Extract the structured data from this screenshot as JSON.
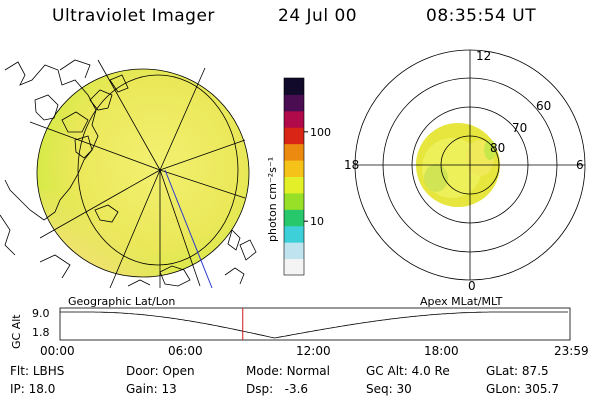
{
  "header": {
    "title": "Ultraviolet Imager",
    "date": "24 Jul 00",
    "time": "08:35:54 UT"
  },
  "colorbar": {
    "unit_label": "photon cm⁻²s⁻¹",
    "ticks": [
      {
        "value": 100,
        "label": "100"
      },
      {
        "value": 10,
        "label": "10"
      }
    ],
    "range": [
      2.5,
      400
    ],
    "scale": "log",
    "colors": [
      "#f4f4f4",
      "#bfe4ef",
      "#3ed0d8",
      "#26c86b",
      "#98e028",
      "#e3ef28",
      "#f5c21a",
      "#ec8a10",
      "#d82515",
      "#b00a4a",
      "#4a0d52",
      "#120a2a"
    ]
  },
  "polar_plot": {
    "hour_labels": [
      "12",
      "18",
      "6",
      "0"
    ],
    "lat_labels": [
      "60",
      "70",
      "80"
    ]
  },
  "map_labels": {
    "left": "Geographic Lat/Lon",
    "right": "Apex MLat/MLT"
  },
  "altitude_plot": {
    "ylabel": "GC Alt",
    "yticks": [
      "9.0",
      "1.8"
    ],
    "xticks": [
      "00:00",
      "06:00",
      "12:00",
      "18:00",
      "23:59"
    ],
    "current_time_hours": 8.6
  },
  "info": {
    "row1": [
      {
        "key": "Flt:",
        "value": "LBHS"
      },
      {
        "key": "Door:",
        "value": "Open"
      },
      {
        "key": "Mode:",
        "value": "Normal"
      },
      {
        "key": "GC Alt:",
        "value": "4.0 Re"
      },
      {
        "key": "GLat:",
        "value": "87.5"
      }
    ],
    "row2": [
      {
        "key": "IP:",
        "value": "18.0"
      },
      {
        "key": "Gain:",
        "value": "13"
      },
      {
        "key": "Dsp:",
        "value": "-3.6"
      },
      {
        "key": "Seq:",
        "value": "30"
      },
      {
        "key": "GLon:",
        "value": "305.7"
      }
    ]
  }
}
